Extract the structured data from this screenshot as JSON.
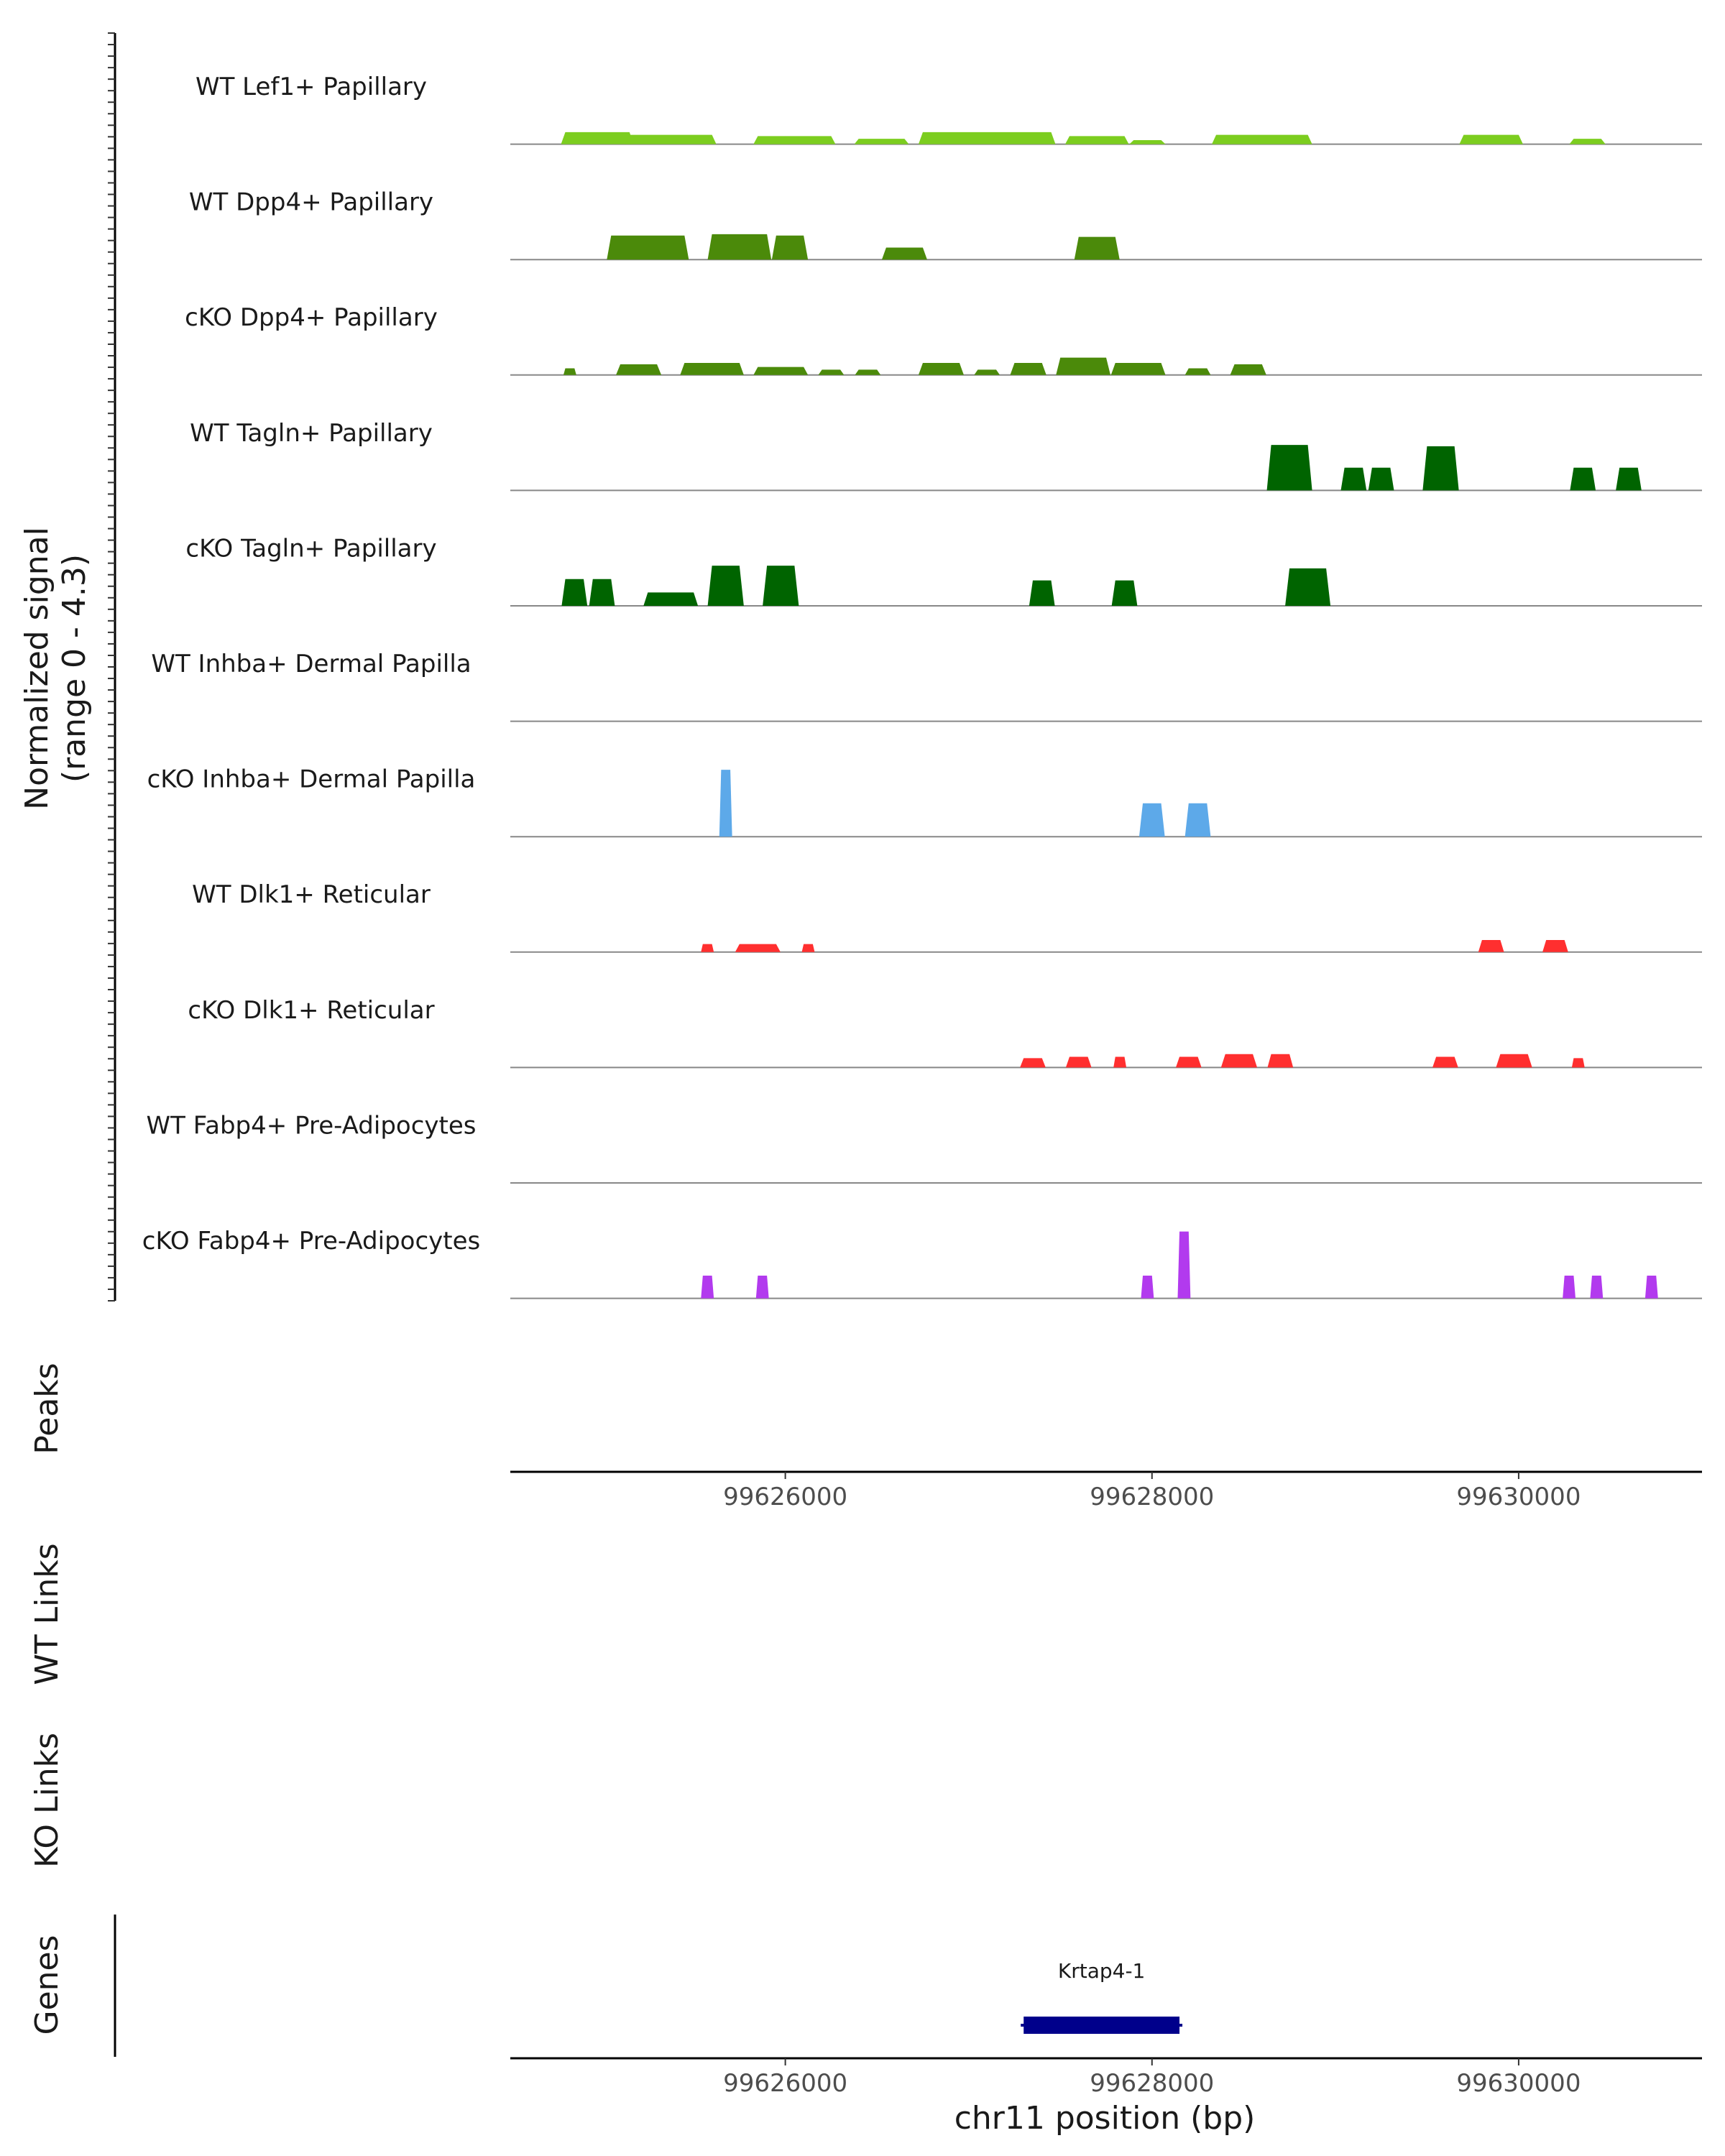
{
  "chart_data": {
    "type": "area",
    "title": "",
    "chromosome": "chr11",
    "xlabel": "chr11 position (bp)",
    "xlim": [
      99624500,
      99631000
    ],
    "x_ticks": [
      99626000,
      99628000,
      99630000
    ],
    "x_tick_labels": [
      "99626000",
      "99628000",
      "99630000"
    ],
    "y_axis_title_line1": "Normalized signal",
    "y_axis_title_line2": "(range 0 - 4.3)",
    "ylim": [
      0,
      4.3
    ],
    "series": [
      {
        "name": "WT Lef1+ Papillary",
        "color": "#7CCD1F",
        "peaks": [
          {
            "start": 99624800,
            "end": 99625150,
            "height": 0.45
          },
          {
            "start": 99625150,
            "end": 99625600,
            "height": 0.35
          },
          {
            "start": 99625850,
            "end": 99626000,
            "height": 0.3
          },
          {
            "start": 99626000,
            "end": 99626250,
            "height": 0.3
          },
          {
            "start": 99626400,
            "end": 99626650,
            "height": 0.2
          },
          {
            "start": 99626750,
            "end": 99627150,
            "height": 0.45
          },
          {
            "start": 99627150,
            "end": 99627450,
            "height": 0.45
          },
          {
            "start": 99627550,
            "end": 99627850,
            "height": 0.3
          },
          {
            "start": 99627900,
            "end": 99628050,
            "height": 0.15
          },
          {
            "start": 99628350,
            "end": 99628850,
            "height": 0.35
          },
          {
            "start": 99629700,
            "end": 99630000,
            "height": 0.35
          },
          {
            "start": 99630300,
            "end": 99630450,
            "height": 0.2
          }
        ]
      },
      {
        "name": "WT Dpp4+ Papillary",
        "color": "#4B8A0A",
        "peaks": [
          {
            "start": 99625050,
            "end": 99625450,
            "height": 0.9
          },
          {
            "start": 99625600,
            "end": 99625900,
            "height": 0.95
          },
          {
            "start": 99625950,
            "end": 99626100,
            "height": 0.9
          },
          {
            "start": 99626550,
            "end": 99626750,
            "height": 0.45
          },
          {
            "start": 99627600,
            "end": 99627800,
            "height": 0.85
          }
        ]
      },
      {
        "name": "cKO Dpp4+ Papillary",
        "color": "#4B8A0A",
        "peaks": [
          {
            "start": 99624800,
            "end": 99624850,
            "height": 0.25
          },
          {
            "start": 99625100,
            "end": 99625300,
            "height": 0.4
          },
          {
            "start": 99625450,
            "end": 99625750,
            "height": 0.45
          },
          {
            "start": 99625850,
            "end": 99626100,
            "height": 0.3
          },
          {
            "start": 99626200,
            "end": 99626300,
            "height": 0.2
          },
          {
            "start": 99626400,
            "end": 99626500,
            "height": 0.2
          },
          {
            "start": 99626750,
            "end": 99626950,
            "height": 0.45
          },
          {
            "start": 99627050,
            "end": 99627150,
            "height": 0.2
          },
          {
            "start": 99627250,
            "end": 99627400,
            "height": 0.45
          },
          {
            "start": 99627500,
            "end": 99627750,
            "height": 0.65
          },
          {
            "start": 99627800,
            "end": 99628050,
            "height": 0.45
          },
          {
            "start": 99628200,
            "end": 99628300,
            "height": 0.25
          },
          {
            "start": 99628450,
            "end": 99628600,
            "height": 0.4
          }
        ]
      },
      {
        "name": "WT Tagln+ Papillary",
        "color": "#006400",
        "peaks": [
          {
            "start": 99628650,
            "end": 99628850,
            "height": 1.7
          },
          {
            "start": 99629050,
            "end": 99629150,
            "height": 0.85
          },
          {
            "start": 99629200,
            "end": 99629300,
            "height": 0.85
          },
          {
            "start": 99629500,
            "end": 99629650,
            "height": 1.65
          },
          {
            "start": 99630300,
            "end": 99630400,
            "height": 0.85
          },
          {
            "start": 99630550,
            "end": 99630650,
            "height": 0.85
          }
        ]
      },
      {
        "name": "cKO Tagln+ Papillary",
        "color": "#006400",
        "peaks": [
          {
            "start": 99624800,
            "end": 99624900,
            "height": 1.0
          },
          {
            "start": 99624950,
            "end": 99625050,
            "height": 1.0
          },
          {
            "start": 99625250,
            "end": 99625500,
            "height": 0.5
          },
          {
            "start": 99625600,
            "end": 99625750,
            "height": 1.5
          },
          {
            "start": 99625900,
            "end": 99626050,
            "height": 1.5
          },
          {
            "start": 99627350,
            "end": 99627450,
            "height": 0.95
          },
          {
            "start": 99627800,
            "end": 99627900,
            "height": 0.95
          },
          {
            "start": 99628750,
            "end": 99628950,
            "height": 1.4
          }
        ]
      },
      {
        "name": "WT Inhba+ Dermal Papilla",
        "color": "#5DA9E9",
        "peaks": []
      },
      {
        "name": "cKO Inhba+ Dermal Papilla",
        "color": "#5DA9E9",
        "peaks": [
          {
            "start": 99625650,
            "end": 99625700,
            "height": 2.5
          },
          {
            "start": 99627950,
            "end": 99628050,
            "height": 1.25
          },
          {
            "start": 99628200,
            "end": 99628300,
            "height": 1.25
          }
        ]
      },
      {
        "name": "WT Dlk1+ Reticular",
        "color": "#FF2F2F",
        "peaks": [
          {
            "start": 99625550,
            "end": 99625600,
            "height": 0.3
          },
          {
            "start": 99625750,
            "end": 99625950,
            "height": 0.3
          },
          {
            "start": 99626100,
            "end": 99626150,
            "height": 0.3
          },
          {
            "start": 99629800,
            "end": 99629900,
            "height": 0.45
          },
          {
            "start": 99630150,
            "end": 99630250,
            "height": 0.45
          }
        ]
      },
      {
        "name": "cKO Dlk1+ Reticular",
        "color": "#FF2F2F",
        "peaks": [
          {
            "start": 99627300,
            "end": 99627400,
            "height": 0.35
          },
          {
            "start": 99627550,
            "end": 99627650,
            "height": 0.4
          },
          {
            "start": 99627800,
            "end": 99627850,
            "height": 0.4
          },
          {
            "start": 99628150,
            "end": 99628250,
            "height": 0.4
          },
          {
            "start": 99628400,
            "end": 99628550,
            "height": 0.5
          },
          {
            "start": 99628650,
            "end": 99628750,
            "height": 0.5
          },
          {
            "start": 99629550,
            "end": 99629650,
            "height": 0.4
          },
          {
            "start": 99629900,
            "end": 99630050,
            "height": 0.5
          },
          {
            "start": 99630300,
            "end": 99630350,
            "height": 0.35
          }
        ]
      },
      {
        "name": "WT Fabp4+ Pre-Adipocytes",
        "color": "#B23AEE",
        "peaks": []
      },
      {
        "name": "cKO Fabp4+ Pre-Adipocytes",
        "color": "#B23AEE",
        "peaks": [
          {
            "start": 99625550,
            "end": 99625600,
            "height": 0.85
          },
          {
            "start": 99625850,
            "end": 99625900,
            "height": 0.85
          },
          {
            "start": 99627950,
            "end": 99628000,
            "height": 0.85
          },
          {
            "start": 99628150,
            "end": 99628200,
            "height": 2.5
          },
          {
            "start": 99630250,
            "end": 99630300,
            "height": 0.85
          },
          {
            "start": 99630400,
            "end": 99630450,
            "height": 0.85
          },
          {
            "start": 99630700,
            "end": 99630750,
            "height": 0.85
          }
        ]
      }
    ],
    "panels": {
      "peaks": "Peaks",
      "wt_links": "WT Links",
      "ko_links": "KO Links",
      "genes": "Genes"
    },
    "gene": {
      "name": "Krtap4-1",
      "start": 99627300,
      "end": 99628150,
      "color": "#00008B"
    }
  }
}
